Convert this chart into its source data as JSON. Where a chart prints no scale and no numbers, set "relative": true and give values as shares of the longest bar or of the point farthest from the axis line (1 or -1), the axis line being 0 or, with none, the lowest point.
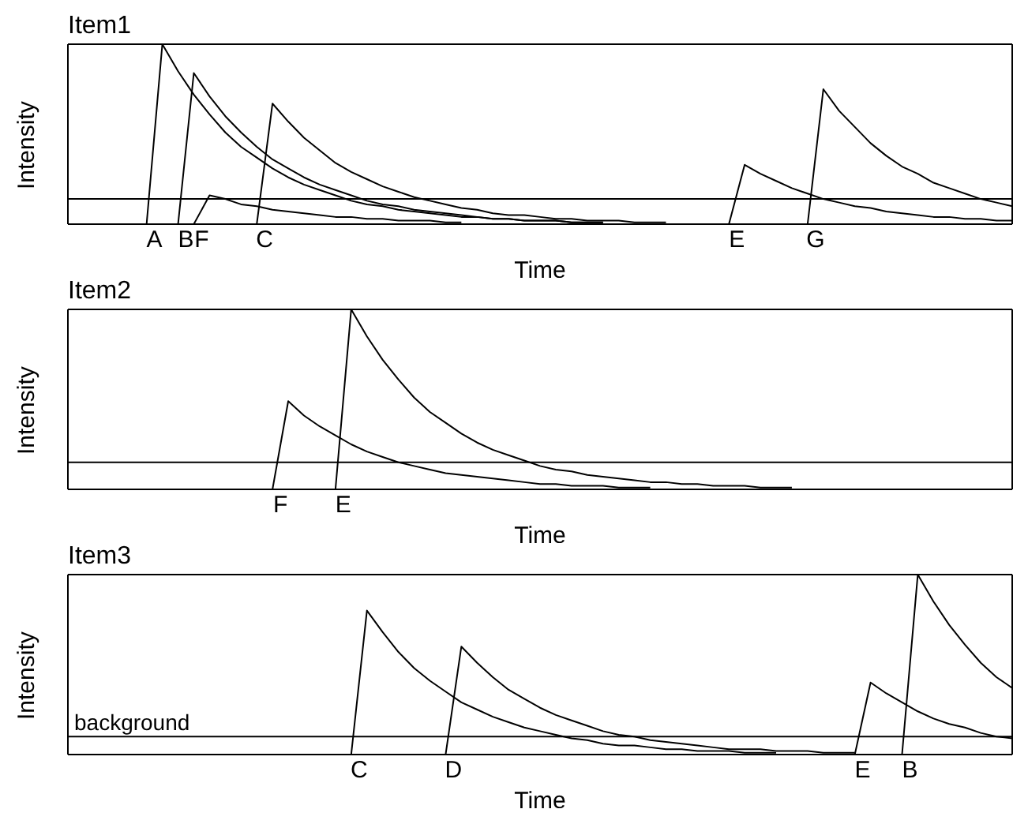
{
  "chart_data": [
    {
      "type": "line",
      "title": "Item1",
      "xlabel": "Time",
      "ylabel": "Intensity",
      "relative": true,
      "categories": [
        null,
        null,
        null,
        null,
        null,
        null,
        null,
        null,
        null,
        null,
        null,
        null,
        null,
        null,
        null,
        null,
        null,
        null,
        null,
        null,
        null,
        null,
        null,
        null,
        null,
        null,
        null,
        null,
        null,
        null,
        null,
        null,
        null,
        null,
        null,
        null,
        null,
        null,
        null,
        null,
        null,
        null,
        null,
        null,
        null,
        null,
        null,
        null,
        null,
        null,
        null,
        null,
        null,
        null,
        null,
        null,
        null,
        null,
        null,
        null,
        null
      ],
      "series": [
        {
          "name": "A",
          "color": "#000000",
          "values": [
            null,
            null,
            null,
            null,
            null,
            0,
            1,
            0.85,
            0.72,
            0.61,
            0.51,
            0.43,
            0.37,
            0.31,
            0.26,
            0.22,
            0.19,
            0.16,
            0.13,
            0.11,
            0.1,
            0.08,
            0.07,
            0.06,
            0.05,
            0.04,
            0.04,
            0.03,
            0.03,
            0.02,
            0.02,
            0.02,
            0.01,
            0.01,
            0.01,
            null,
            null,
            null,
            null,
            null,
            null,
            null,
            null,
            null,
            null,
            null,
            null,
            null,
            null,
            null,
            null,
            null,
            null,
            null,
            null,
            null,
            null,
            null,
            null,
            null,
            null
          ]
        },
        {
          "name": "B",
          "color": "#000000",
          "values": [
            null,
            null,
            null,
            null,
            null,
            null,
            null,
            0,
            0.84,
            0.71,
            0.6,
            0.51,
            0.43,
            0.36,
            0.31,
            0.26,
            0.22,
            0.19,
            0.16,
            0.13,
            0.11,
            0.1,
            0.08,
            0.07,
            0.06,
            0.05,
            0.04,
            0.03,
            0.03,
            0.02,
            0.02,
            0.02,
            0.01,
            0.01,
            0.01,
            null,
            null,
            null,
            null,
            null,
            null,
            null,
            null,
            null,
            null,
            null,
            null,
            null,
            null,
            null,
            null,
            null,
            null,
            null,
            null,
            null,
            null,
            null,
            null,
            null,
            null
          ]
        },
        {
          "name": "F",
          "color": "#000000",
          "values": [
            null,
            null,
            null,
            null,
            null,
            null,
            null,
            null,
            0,
            0.16,
            0.14,
            0.11,
            0.1,
            0.08,
            0.07,
            0.06,
            0.05,
            0.04,
            0.04,
            0.03,
            0.03,
            0.02,
            0.02,
            0.02,
            0.01,
            0.01,
            null,
            null,
            null,
            null,
            null,
            null,
            null,
            null,
            null,
            null,
            null,
            null,
            null,
            null,
            null,
            null,
            null,
            null,
            null,
            null,
            null,
            null,
            null,
            null,
            null,
            null,
            null,
            null,
            null,
            null,
            null,
            null,
            null,
            null,
            null
          ]
        },
        {
          "name": "C",
          "color": "#000000",
          "values": [
            null,
            null,
            null,
            null,
            null,
            null,
            null,
            null,
            null,
            null,
            null,
            null,
            0,
            0.67,
            0.57,
            0.48,
            0.41,
            0.34,
            0.29,
            0.25,
            0.21,
            0.18,
            0.15,
            0.13,
            0.11,
            0.09,
            0.08,
            0.06,
            0.05,
            0.05,
            0.04,
            0.03,
            0.03,
            0.02,
            0.02,
            0.02,
            0.01,
            0.01,
            0.01,
            null,
            null,
            null,
            null,
            null,
            null,
            null,
            null,
            null,
            null,
            null,
            null,
            null,
            null,
            null,
            null,
            null,
            null,
            null,
            null,
            null,
            null
          ]
        },
        {
          "name": "E",
          "color": "#000000",
          "values": [
            null,
            null,
            null,
            null,
            null,
            null,
            null,
            null,
            null,
            null,
            null,
            null,
            null,
            null,
            null,
            null,
            null,
            null,
            null,
            null,
            null,
            null,
            null,
            null,
            null,
            null,
            null,
            null,
            null,
            null,
            null,
            null,
            null,
            null,
            null,
            null,
            null,
            null,
            null,
            null,
            null,
            null,
            0,
            0.33,
            0.28,
            0.24,
            0.2,
            0.17,
            0.14,
            0.12,
            0.1,
            0.09,
            0.07,
            0.06,
            0.05,
            0.04,
            0.04,
            0.03,
            0.03,
            0.02,
            0.02
          ]
        },
        {
          "name": "G",
          "color": "#000000",
          "values": [
            null,
            null,
            null,
            null,
            null,
            null,
            null,
            null,
            null,
            null,
            null,
            null,
            null,
            null,
            null,
            null,
            null,
            null,
            null,
            null,
            null,
            null,
            null,
            null,
            null,
            null,
            null,
            null,
            null,
            null,
            null,
            null,
            null,
            null,
            null,
            null,
            null,
            null,
            null,
            null,
            null,
            null,
            null,
            null,
            null,
            null,
            null,
            0,
            0.75,
            0.63,
            0.54,
            0.45,
            0.38,
            0.32,
            0.28,
            0.23,
            0.2,
            0.17,
            0.14,
            0.12,
            0.1
          ]
        }
      ],
      "ref_lines": [
        {
          "axis": "y",
          "value": 0.14,
          "color": "#000000"
        }
      ]
    },
    {
      "type": "line",
      "title": "Item2",
      "xlabel": "Time",
      "ylabel": "Intensity",
      "relative": true,
      "categories": [
        null,
        null,
        null,
        null,
        null,
        null,
        null,
        null,
        null,
        null,
        null,
        null,
        null,
        null,
        null,
        null,
        null,
        null,
        null,
        null,
        null,
        null,
        null,
        null,
        null,
        null,
        null,
        null,
        null,
        null,
        null,
        null,
        null,
        null,
        null,
        null,
        null,
        null,
        null,
        null,
        null,
        null,
        null,
        null,
        null,
        null,
        null,
        null,
        null,
        null,
        null,
        null,
        null,
        null,
        null,
        null,
        null,
        null,
        null,
        null,
        null
      ],
      "series": [
        {
          "name": "F",
          "color": "#000000",
          "values": [
            null,
            null,
            null,
            null,
            null,
            null,
            null,
            null,
            null,
            null,
            null,
            null,
            null,
            0,
            0.49,
            0.41,
            0.35,
            0.3,
            0.25,
            0.21,
            0.18,
            0.15,
            0.13,
            0.11,
            0.09,
            0.08,
            0.07,
            0.06,
            0.05,
            0.04,
            0.03,
            0.03,
            0.02,
            0.02,
            0.02,
            0.01,
            0.01,
            0.01,
            null,
            null,
            null,
            null,
            null,
            null,
            null,
            null,
            null,
            null,
            null,
            null,
            null,
            null,
            null,
            null,
            null,
            null,
            null,
            null,
            null,
            null,
            null
          ]
        },
        {
          "name": "E",
          "color": "#000000",
          "values": [
            null,
            null,
            null,
            null,
            null,
            null,
            null,
            null,
            null,
            null,
            null,
            null,
            null,
            null,
            null,
            null,
            null,
            0,
            1,
            0.85,
            0.72,
            0.61,
            0.51,
            0.43,
            0.37,
            0.31,
            0.26,
            0.22,
            0.19,
            0.16,
            0.13,
            0.11,
            0.1,
            0.08,
            0.07,
            0.06,
            0.05,
            0.04,
            0.04,
            0.03,
            0.03,
            0.02,
            0.02,
            0.02,
            0.01,
            0.01,
            0.01,
            null,
            null,
            null,
            null,
            null,
            null,
            null,
            null,
            null,
            null,
            null,
            null,
            null,
            null
          ]
        }
      ],
      "ref_lines": [
        {
          "axis": "y",
          "value": 0.15,
          "color": "#000000"
        }
      ]
    },
    {
      "type": "line",
      "title": "Item3",
      "xlabel": "Time",
      "ylabel": "Intensity",
      "relative": true,
      "categories": [
        null,
        null,
        null,
        null,
        null,
        null,
        null,
        null,
        null,
        null,
        null,
        null,
        null,
        null,
        null,
        null,
        null,
        null,
        null,
        null,
        null,
        null,
        null,
        null,
        null,
        null,
        null,
        null,
        null,
        null,
        null,
        null,
        null,
        null,
        null,
        null,
        null,
        null,
        null,
        null,
        null,
        null,
        null,
        null,
        null,
        null,
        null,
        null,
        null,
        null,
        null,
        null,
        null,
        null,
        null,
        null,
        null,
        null,
        null,
        null,
        null
      ],
      "series": [
        {
          "name": "C",
          "color": "#000000",
          "values": [
            null,
            null,
            null,
            null,
            null,
            null,
            null,
            null,
            null,
            null,
            null,
            null,
            null,
            null,
            null,
            null,
            null,
            null,
            0,
            0.8,
            0.68,
            0.57,
            0.48,
            0.41,
            0.35,
            0.29,
            0.25,
            0.21,
            0.18,
            0.15,
            0.13,
            0.11,
            0.09,
            0.08,
            0.06,
            0.05,
            0.05,
            0.04,
            0.03,
            0.03,
            0.02,
            0.02,
            0.02,
            0.01,
            0.01,
            0.01,
            null,
            null,
            null,
            null,
            null,
            null,
            null,
            null,
            null,
            null,
            null,
            null,
            null,
            null,
            null
          ]
        },
        {
          "name": "D",
          "color": "#000000",
          "values": [
            null,
            null,
            null,
            null,
            null,
            null,
            null,
            null,
            null,
            null,
            null,
            null,
            null,
            null,
            null,
            null,
            null,
            null,
            null,
            null,
            null,
            null,
            null,
            null,
            0,
            0.6,
            0.51,
            0.43,
            0.36,
            0.31,
            0.26,
            0.22,
            0.19,
            0.16,
            0.13,
            0.11,
            0.1,
            0.08,
            0.07,
            0.06,
            0.05,
            0.04,
            0.03,
            0.03,
            0.03,
            0.02,
            0.02,
            0.02,
            0.01,
            0.01,
            0.01,
            null,
            null,
            null,
            null,
            null,
            null,
            null,
            null,
            null,
            null
          ]
        },
        {
          "name": "E",
          "color": "#000000",
          "values": [
            null,
            null,
            null,
            null,
            null,
            null,
            null,
            null,
            null,
            null,
            null,
            null,
            null,
            null,
            null,
            null,
            null,
            null,
            null,
            null,
            null,
            null,
            null,
            null,
            null,
            null,
            null,
            null,
            null,
            null,
            null,
            null,
            null,
            null,
            null,
            null,
            null,
            null,
            null,
            null,
            null,
            null,
            null,
            null,
            null,
            null,
            null,
            null,
            null,
            null,
            0,
            0.4,
            0.34,
            0.29,
            0.24,
            0.2,
            0.17,
            0.15,
            0.12,
            0.1,
            0.09
          ]
        },
        {
          "name": "B",
          "color": "#000000",
          "values": [
            null,
            null,
            null,
            null,
            null,
            null,
            null,
            null,
            null,
            null,
            null,
            null,
            null,
            null,
            null,
            null,
            null,
            null,
            null,
            null,
            null,
            null,
            null,
            null,
            null,
            null,
            null,
            null,
            null,
            null,
            null,
            null,
            null,
            null,
            null,
            null,
            null,
            null,
            null,
            null,
            null,
            null,
            null,
            null,
            null,
            null,
            null,
            null,
            null,
            null,
            null,
            null,
            null,
            0,
            1,
            0.85,
            0.72,
            0.61,
            0.51,
            0.43,
            0.37
          ]
        }
      ],
      "ref_lines": [
        {
          "axis": "y",
          "value": 0.1,
          "label": "background",
          "color": "#000000"
        }
      ]
    }
  ]
}
